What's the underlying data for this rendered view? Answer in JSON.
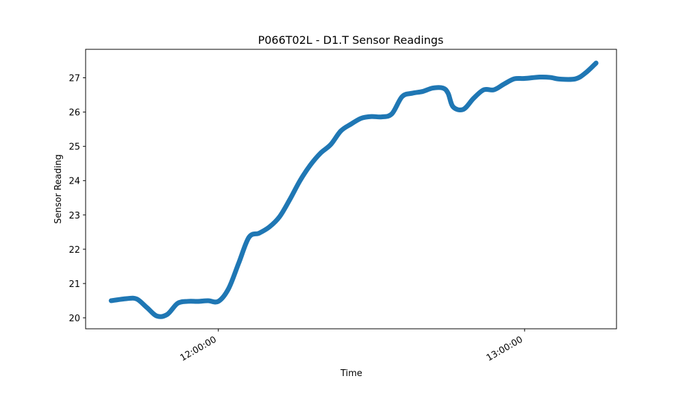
{
  "chart_data": {
    "type": "line",
    "title": "P066T02L - D1.T Sensor Readings",
    "xlabel": "Time",
    "ylabel": "Sensor Reading",
    "x_ticks": [
      "12:00:00",
      "13:00:00"
    ],
    "y_ticks": [
      20,
      21,
      22,
      23,
      24,
      25,
      26,
      27
    ],
    "xlim": [
      "11:34:00",
      "13:18:00"
    ],
    "ylim": [
      19.68,
      27.83
    ],
    "grid": false,
    "color": "#1f77b4",
    "series": [
      {
        "x": [
          "11:39:00",
          "11:42:00",
          "11:44:00",
          "11:46:00",
          "11:48:00",
          "11:50:00",
          "11:52:00",
          "11:54:00",
          "11:56:00",
          "11:58:00",
          "12:00:00",
          "12:02:00",
          "12:04:00",
          "12:06:00",
          "12:08:00",
          "12:10:00",
          "12:12:00",
          "12:14:00",
          "12:16:00",
          "12:18:00",
          "12:20:00",
          "12:22:00",
          "12:24:00",
          "12:26:00",
          "12:28:00",
          "12:30:00",
          "12:32:00",
          "12:34:00",
          "12:36:00",
          "12:38:00",
          "12:40:00",
          "12:42:00",
          "12:44:00",
          "12:45:00",
          "12:46:00",
          "12:48:00",
          "12:50:00",
          "12:52:00",
          "12:54:00",
          "12:56:00",
          "12:58:00",
          "13:00:00",
          "13:03:00",
          "13:05:00",
          "13:07:00",
          "13:10:00",
          "13:12:00",
          "13:14:00"
        ],
        "y": [
          20.5,
          20.56,
          20.55,
          20.3,
          20.05,
          20.1,
          20.42,
          20.48,
          20.48,
          20.5,
          20.48,
          20.85,
          21.6,
          22.35,
          22.47,
          22.65,
          22.95,
          23.45,
          24.0,
          24.45,
          24.8,
          25.05,
          25.45,
          25.65,
          25.82,
          25.87,
          25.86,
          25.95,
          26.45,
          26.55,
          26.6,
          26.7,
          26.7,
          26.55,
          26.15,
          26.08,
          26.4,
          26.65,
          26.65,
          26.82,
          26.97,
          26.98,
          27.02,
          27.01,
          26.96,
          26.97,
          27.15,
          27.43
        ]
      }
    ]
  }
}
